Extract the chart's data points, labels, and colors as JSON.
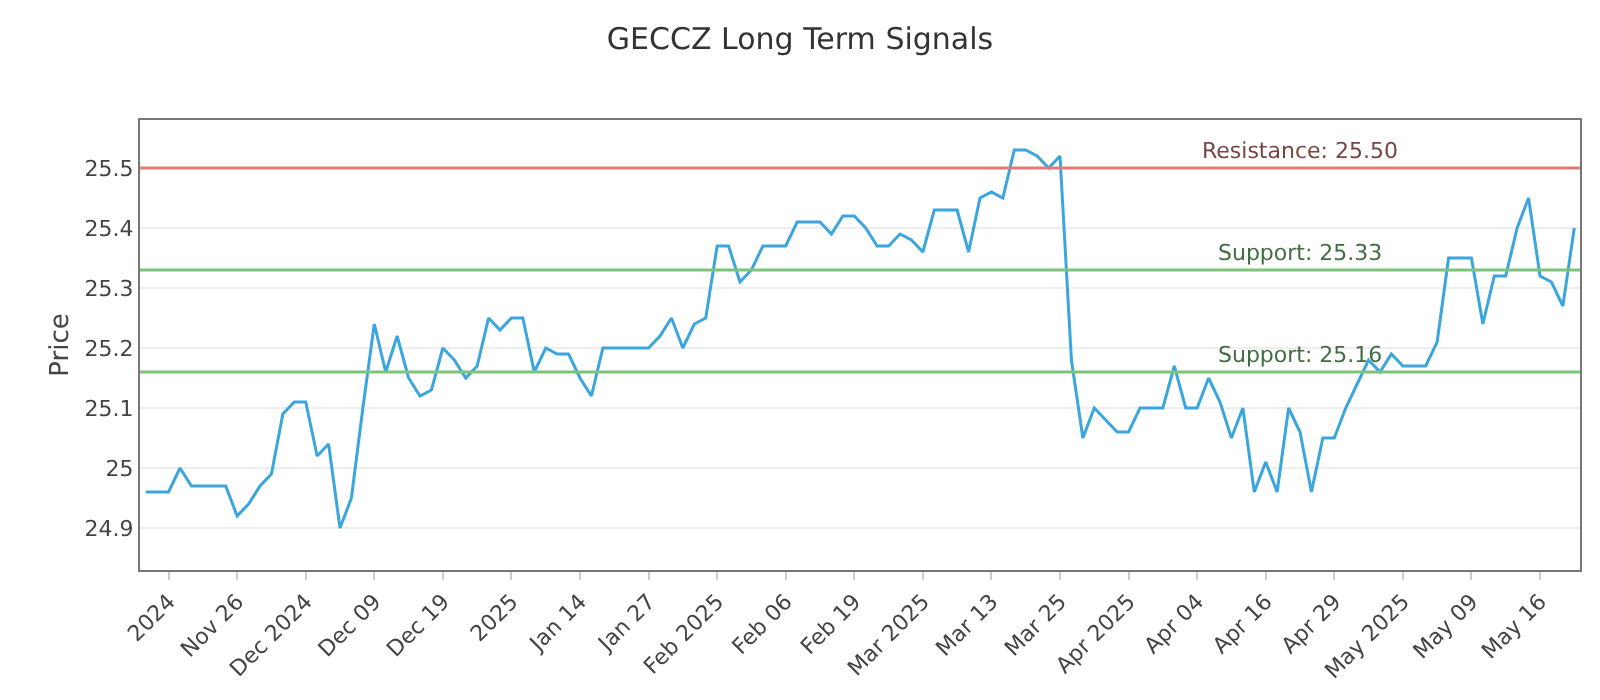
{
  "chart_data": {
    "type": "line",
    "title": "GECCZ Long Term Signals",
    "ylabel": "Price",
    "categories": [
      null,
      null,
      "2024",
      null,
      null,
      null,
      null,
      null,
      "Nov 26",
      null,
      null,
      null,
      null,
      null,
      "Dec 2024",
      null,
      null,
      null,
      null,
      null,
      "Dec 09",
      null,
      null,
      null,
      null,
      null,
      "Dec 19",
      null,
      null,
      null,
      null,
      null,
      "2025",
      null,
      null,
      null,
      null,
      null,
      "Jan 14",
      null,
      null,
      null,
      null,
      null,
      "Jan 27",
      null,
      null,
      null,
      null,
      null,
      "Feb 2025",
      null,
      null,
      null,
      null,
      null,
      "Feb 06",
      null,
      null,
      null,
      null,
      null,
      "Feb 19",
      null,
      null,
      null,
      null,
      null,
      "Mar 2025",
      null,
      null,
      null,
      null,
      null,
      "Mar 13",
      null,
      null,
      null,
      null,
      null,
      "Mar 25",
      null,
      null,
      null,
      null,
      null,
      "Apr 2025",
      null,
      null,
      null,
      null,
      null,
      "Apr 04",
      null,
      null,
      null,
      null,
      null,
      "Apr 16",
      null,
      null,
      null,
      null,
      null,
      "Apr 29",
      null,
      null,
      null,
      null,
      null,
      "May 2025",
      null,
      null,
      null,
      null,
      null,
      "May 09",
      null,
      null,
      null,
      null,
      null,
      "May 16",
      null,
      null,
      null
    ],
    "series": [
      {
        "color": "#3ba6dd",
        "values": [
          24.96,
          24.96,
          24.96,
          25.0,
          24.97,
          24.97,
          24.97,
          24.97,
          24.92,
          24.94,
          24.97,
          24.99,
          25.09,
          25.11,
          25.11,
          25.02,
          25.04,
          24.9,
          24.95,
          25.1,
          25.24,
          25.16,
          25.22,
          25.15,
          25.12,
          25.13,
          25.2,
          25.18,
          25.15,
          25.17,
          25.25,
          25.23,
          25.25,
          25.25,
          25.16,
          25.2,
          25.19,
          25.19,
          25.15,
          25.12,
          25.2,
          25.2,
          25.2,
          25.2,
          25.2,
          25.22,
          25.25,
          25.2,
          25.24,
          25.25,
          25.37,
          25.37,
          25.31,
          25.33,
          25.37,
          25.37,
          25.37,
          25.41,
          25.41,
          25.41,
          25.39,
          25.42,
          25.42,
          25.4,
          25.37,
          25.37,
          25.39,
          25.38,
          25.36,
          25.43,
          25.43,
          25.43,
          25.36,
          25.45,
          25.46,
          25.45,
          25.53,
          25.53,
          25.52,
          25.5,
          25.52,
          25.18,
          25.05,
          25.1,
          25.08,
          25.06,
          25.06,
          25.1,
          25.1,
          25.1,
          25.17,
          25.1,
          25.1,
          25.15,
          25.11,
          25.05,
          25.1,
          24.96,
          25.01,
          24.96,
          25.1,
          25.06,
          24.96,
          25.05,
          25.05,
          25.1,
          25.14,
          25.18,
          25.16,
          25.19,
          25.17,
          25.17,
          25.17,
          25.21,
          25.35,
          25.35,
          25.35,
          25.24,
          25.32,
          25.32,
          25.4,
          25.45,
          25.32,
          25.31,
          25.27,
          25.4
        ]
      }
    ],
    "ylim": [
      24.83,
      25.58
    ],
    "yticks": [
      24.9,
      25.0,
      25.1,
      25.2,
      25.3,
      25.4,
      25.5
    ],
    "grid": "y",
    "marker": "none",
    "line_style": "solid",
    "ref_lines": [
      {
        "axis": "y",
        "value": 25.5,
        "label": "Resistance: 25.50",
        "color": "#e07b7b"
      },
      {
        "axis": "y",
        "value": 25.33,
        "label": "Support: 25.33",
        "color": "#7cc47c"
      },
      {
        "axis": "y",
        "value": 25.16,
        "label": "Support: 25.16",
        "color": "#7cc47c"
      }
    ]
  }
}
